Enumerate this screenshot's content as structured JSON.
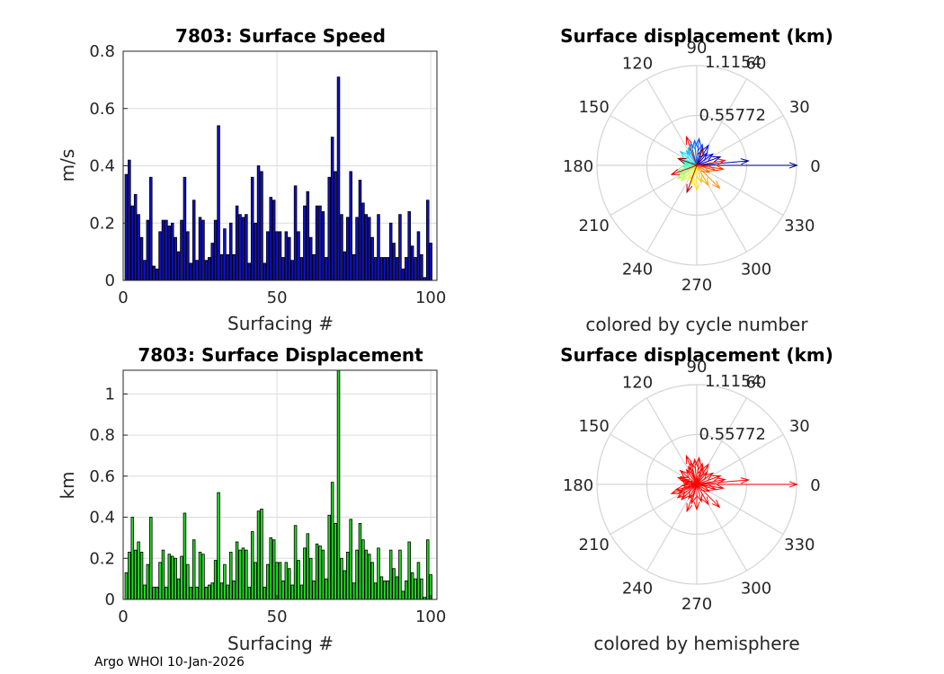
{
  "footer": "Argo WHOI 10-Jan-2026",
  "colors": {
    "speed_bar": "#1010c8",
    "disp_bar": "#22dd22",
    "bar_edge": "#000000",
    "grid": "#dcdcdc",
    "arrow_red": "#ff0000"
  },
  "chart_data": [
    {
      "type": "bar",
      "id": "speed",
      "title": "7803: Surface Speed",
      "xlabel": "Surfacing #",
      "ylabel": "m/s",
      "xlim": [
        0,
        102
      ],
      "ylim": [
        0,
        0.8
      ],
      "xticks": [
        0,
        50,
        100
      ],
      "yticks": [
        0,
        0.2,
        0.4,
        0.6,
        0.8
      ],
      "ytick_labels": [
        "0",
        "0.2",
        "0.4",
        "0.6",
        "0.8"
      ],
      "x": [
        1,
        2,
        3,
        4,
        5,
        6,
        7,
        8,
        9,
        10,
        11,
        12,
        13,
        14,
        15,
        16,
        17,
        18,
        19,
        20,
        21,
        22,
        23,
        24,
        25,
        26,
        27,
        28,
        29,
        30,
        31,
        32,
        33,
        34,
        35,
        36,
        37,
        38,
        39,
        40,
        41,
        42,
        43,
        44,
        45,
        46,
        47,
        48,
        49,
        50,
        51,
        52,
        53,
        54,
        55,
        56,
        57,
        58,
        59,
        60,
        61,
        62,
        63,
        64,
        65,
        66,
        67,
        68,
        69,
        70,
        71,
        72,
        73,
        74,
        75,
        76,
        77,
        78,
        79,
        80,
        81,
        82,
        83,
        84,
        85,
        86,
        87,
        88,
        89,
        90,
        91,
        92,
        93,
        94,
        95,
        96,
        97,
        98,
        99,
        100
      ],
      "values": [
        0.37,
        0.42,
        0.26,
        0.3,
        0.23,
        0.15,
        0.07,
        0.21,
        0.36,
        0.05,
        0.04,
        0.17,
        0.21,
        0.21,
        0.19,
        0.2,
        0.15,
        0.1,
        0.21,
        0.36,
        0.17,
        0.06,
        0.28,
        0.07,
        0.22,
        0.21,
        0.07,
        0.08,
        0.13,
        0.21,
        0.54,
        0.09,
        0.18,
        0.09,
        0.2,
        0.09,
        0.26,
        0.23,
        0.22,
        0.23,
        0.06,
        0.36,
        0.2,
        0.4,
        0.38,
        0.06,
        0.17,
        0.29,
        0.28,
        0.17,
        0.17,
        0.08,
        0.17,
        0.15,
        0.07,
        0.33,
        0.17,
        0.08,
        0.26,
        0.31,
        0.15,
        0.09,
        0.26,
        0.26,
        0.24,
        0.08,
        0.36,
        0.5,
        0.38,
        0.71,
        0.23,
        0.1,
        0.22,
        0.38,
        0.09,
        0.22,
        0.35,
        0.27,
        0.23,
        0.22,
        0.15,
        0.08,
        0.23,
        0.08,
        0.08,
        0.08,
        0.2,
        0.13,
        0.08,
        0.23,
        0.04,
        0.08,
        0.24,
        0.12,
        0.08,
        0.17,
        0.09,
        0.01,
        0.28,
        0.13
      ]
    },
    {
      "type": "bar",
      "id": "displacement",
      "title": "7803: Surface Displacement",
      "xlabel": "Surfacing #",
      "ylabel": "km",
      "xlim": [
        0,
        102
      ],
      "ylim": [
        0,
        1.1154
      ],
      "xticks": [
        0,
        50,
        100
      ],
      "yticks": [
        0,
        0.2,
        0.4,
        0.6,
        0.8,
        1.0
      ],
      "ytick_labels": [
        "0",
        "0.2",
        "0.4",
        "0.6",
        "0.8",
        "1"
      ],
      "x": [
        1,
        2,
        3,
        4,
        5,
        6,
        7,
        8,
        9,
        10,
        11,
        12,
        13,
        14,
        15,
        16,
        17,
        18,
        19,
        20,
        21,
        22,
        23,
        24,
        25,
        26,
        27,
        28,
        29,
        30,
        31,
        32,
        33,
        34,
        35,
        36,
        37,
        38,
        39,
        40,
        41,
        42,
        43,
        44,
        45,
        46,
        47,
        48,
        49,
        50,
        51,
        52,
        53,
        54,
        55,
        56,
        57,
        58,
        59,
        60,
        61,
        62,
        63,
        64,
        65,
        66,
        67,
        68,
        69,
        70,
        71,
        72,
        73,
        74,
        75,
        76,
        77,
        78,
        79,
        80,
        81,
        82,
        83,
        84,
        85,
        86,
        87,
        88,
        89,
        90,
        91,
        92,
        93,
        94,
        95,
        96,
        97,
        98,
        99,
        100
      ],
      "values": [
        0.13,
        0.23,
        0.4,
        0.24,
        0.28,
        0.23,
        0.07,
        0.17,
        0.4,
        0.06,
        0.06,
        0.18,
        0.24,
        0.06,
        0.22,
        0.21,
        0.2,
        0.1,
        0.21,
        0.42,
        0.17,
        0.06,
        0.29,
        0.06,
        0.23,
        0.22,
        0.06,
        0.07,
        0.08,
        0.19,
        0.52,
        0.08,
        0.17,
        0.07,
        0.23,
        0.09,
        0.28,
        0.24,
        0.25,
        0.24,
        0.06,
        0.33,
        0.18,
        0.43,
        0.44,
        0.06,
        0.17,
        0.3,
        0.29,
        0.18,
        0.18,
        0.09,
        0.18,
        0.15,
        0.07,
        0.36,
        0.19,
        0.07,
        0.25,
        0.32,
        0.2,
        0.09,
        0.27,
        0.26,
        0.24,
        0.1,
        0.41,
        0.57,
        0.37,
        1.12,
        0.2,
        0.14,
        0.23,
        0.39,
        0.08,
        0.24,
        0.37,
        0.29,
        0.24,
        0.22,
        0.18,
        0.08,
        0.25,
        0.11,
        0.09,
        0.09,
        0.24,
        0.15,
        0.11,
        0.24,
        0.04,
        0.09,
        0.28,
        0.13,
        0.1,
        0.18,
        0.1,
        0.01,
        0.29,
        0.12
      ]
    },
    {
      "type": "polar",
      "id": "polar_cycle",
      "title": "Surface displacement (km)",
      "caption": "colored by cycle number",
      "r_max": 1.1154,
      "r_tick_labels": [
        "1.1154",
        "0.55772"
      ],
      "angle_labels": [
        "0",
        "30",
        "60",
        "90",
        "120",
        "150",
        "180",
        "210",
        "240",
        "270",
        "300",
        "330"
      ],
      "color_mode": "cycle",
      "vectors": [
        {
          "a": 0,
          "r": 1.12
        },
        {
          "a": 5,
          "r": 0.58
        },
        {
          "a": 20,
          "r": 0.28
        },
        {
          "a": 35,
          "r": 0.22
        },
        {
          "a": 50,
          "r": 0.18
        },
        {
          "a": 60,
          "r": 0.26
        },
        {
          "a": 75,
          "r": 0.24
        },
        {
          "a": 85,
          "r": 0.3
        },
        {
          "a": 95,
          "r": 0.28
        },
        {
          "a": 105,
          "r": 0.26
        },
        {
          "a": 115,
          "r": 0.22
        },
        {
          "a": 125,
          "r": 0.2
        },
        {
          "a": 140,
          "r": 0.24
        },
        {
          "a": 155,
          "r": 0.2
        },
        {
          "a": 165,
          "r": 0.18
        },
        {
          "a": 175,
          "r": 0.14
        },
        {
          "a": 185,
          "r": 0.16
        },
        {
          "a": 195,
          "r": 0.24
        },
        {
          "a": 205,
          "r": 0.22
        },
        {
          "a": 215,
          "r": 0.26
        },
        {
          "a": 225,
          "r": 0.24
        },
        {
          "a": 240,
          "r": 0.18
        },
        {
          "a": 255,
          "r": 0.22
        },
        {
          "a": 270,
          "r": 0.28
        },
        {
          "a": 285,
          "r": 0.2
        },
        {
          "a": 300,
          "r": 0.26
        },
        {
          "a": 315,
          "r": 0.36
        },
        {
          "a": 330,
          "r": 0.16
        },
        {
          "a": 345,
          "r": 0.22
        },
        {
          "a": 352,
          "r": 0.3
        },
        {
          "a": 10,
          "r": 0.32
        },
        {
          "a": 110,
          "r": 0.34
        },
        {
          "a": 200,
          "r": 0.3
        },
        {
          "a": 250,
          "r": 0.32
        },
        {
          "a": 160,
          "r": 0.22
        },
        {
          "a": 70,
          "r": 0.2
        }
      ]
    },
    {
      "type": "polar",
      "id": "polar_hemisphere",
      "title": "Surface displacement (km)",
      "caption": "colored by hemisphere",
      "r_max": 1.1154,
      "r_tick_labels": [
        "1.1154",
        "0.55772"
      ],
      "angle_labels": [
        "0",
        "30",
        "60",
        "90",
        "120",
        "150",
        "180",
        "210",
        "240",
        "270",
        "300",
        "330"
      ],
      "color_mode": "single",
      "vectors": [
        {
          "a": 0,
          "r": 1.12
        },
        {
          "a": 5,
          "r": 0.58
        },
        {
          "a": 20,
          "r": 0.28
        },
        {
          "a": 35,
          "r": 0.22
        },
        {
          "a": 50,
          "r": 0.18
        },
        {
          "a": 60,
          "r": 0.26
        },
        {
          "a": 75,
          "r": 0.24
        },
        {
          "a": 85,
          "r": 0.3
        },
        {
          "a": 95,
          "r": 0.28
        },
        {
          "a": 105,
          "r": 0.26
        },
        {
          "a": 115,
          "r": 0.22
        },
        {
          "a": 125,
          "r": 0.2
        },
        {
          "a": 140,
          "r": 0.24
        },
        {
          "a": 155,
          "r": 0.2
        },
        {
          "a": 165,
          "r": 0.18
        },
        {
          "a": 175,
          "r": 0.14
        },
        {
          "a": 185,
          "r": 0.16
        },
        {
          "a": 195,
          "r": 0.24
        },
        {
          "a": 205,
          "r": 0.22
        },
        {
          "a": 215,
          "r": 0.26
        },
        {
          "a": 225,
          "r": 0.24
        },
        {
          "a": 240,
          "r": 0.18
        },
        {
          "a": 255,
          "r": 0.22
        },
        {
          "a": 270,
          "r": 0.28
        },
        {
          "a": 285,
          "r": 0.2
        },
        {
          "a": 300,
          "r": 0.26
        },
        {
          "a": 315,
          "r": 0.36
        },
        {
          "a": 330,
          "r": 0.16
        },
        {
          "a": 345,
          "r": 0.22
        },
        {
          "a": 352,
          "r": 0.3
        },
        {
          "a": 10,
          "r": 0.32
        },
        {
          "a": 110,
          "r": 0.34
        },
        {
          "a": 200,
          "r": 0.3
        },
        {
          "a": 250,
          "r": 0.32
        },
        {
          "a": 160,
          "r": 0.22
        },
        {
          "a": 70,
          "r": 0.2
        }
      ]
    }
  ]
}
